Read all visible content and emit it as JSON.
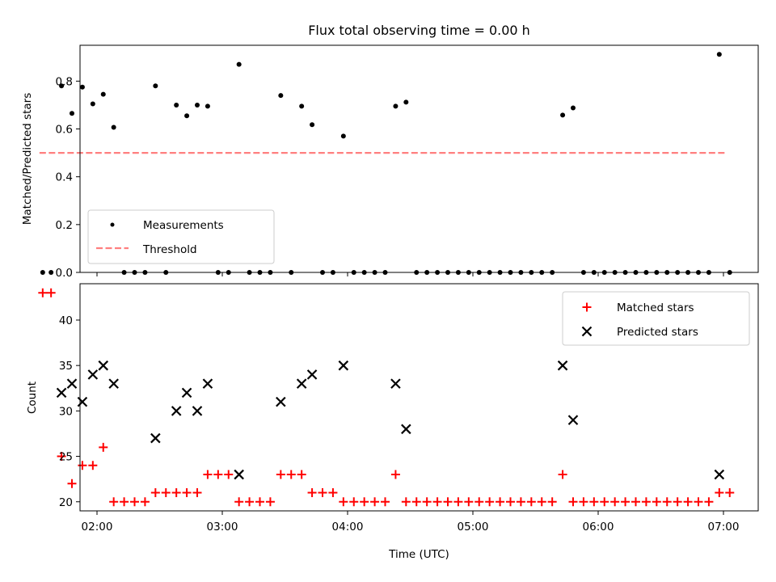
{
  "chart_data": [
    {
      "type": "scatter",
      "title": "Flux total observing time = 0.00 h",
      "xlabel": "",
      "ylabel": "Matched/Predicted stars",
      "ylim": [
        0,
        0.95
      ],
      "yticks": [
        "0.0",
        "0.2",
        "0.4",
        "0.6",
        "0.8"
      ],
      "grid": false,
      "legend_position": "lower-left",
      "series": [
        {
          "name": "Measurements",
          "color": "#000000",
          "marker": "dot",
          "x": [
            "01:34",
            "01:38",
            "01:43",
            "01:48",
            "01:53",
            "01:58",
            "02:03",
            "02:08",
            "02:13",
            "02:18",
            "02:23",
            "02:28",
            "02:33",
            "02:38",
            "02:43",
            "02:48",
            "02:53",
            "02:58",
            "03:03",
            "03:08",
            "03:13",
            "03:18",
            "03:23",
            "03:28",
            "03:33",
            "03:38",
            "03:43",
            "03:48",
            "03:53",
            "03:58",
            "04:03",
            "04:08",
            "04:13",
            "04:18",
            "04:23",
            "04:28",
            "04:33",
            "04:38",
            "04:43",
            "04:48",
            "04:53",
            "04:58",
            "05:03",
            "05:08",
            "05:13",
            "05:18",
            "05:23",
            "05:28",
            "05:33",
            "05:38",
            "05:43",
            "05:48",
            "05:53",
            "05:58",
            "06:03",
            "06:08",
            "06:13",
            "06:18",
            "06:23",
            "06:28",
            "06:33",
            "06:38",
            "06:43",
            "06:48",
            "06:53",
            "06:58",
            "07:03"
          ],
          "y": [
            0,
            0,
            0.78,
            0.665,
            0.775,
            0.705,
            0.745,
            0.607,
            0,
            0,
            0,
            0.78,
            0,
            0.7,
            0.655,
            0.7,
            0.695,
            0,
            0,
            0.87,
            0,
            0,
            0,
            0.74,
            0,
            0.695,
            0.618,
            0,
            0,
            0.57,
            0,
            0,
            0,
            0,
            0.695,
            0.712,
            0,
            0,
            0,
            0,
            0,
            0,
            0,
            0,
            0,
            0,
            0,
            0,
            0,
            0,
            0.658,
            0.688,
            0,
            0,
            0,
            0,
            0,
            0,
            0,
            0,
            0,
            0,
            0,
            0,
            0,
            0.912,
            0
          ]
        },
        {
          "name": "Threshold",
          "color": "#ff7f7f",
          "style": "dashed",
          "x": [
            "01:34",
            "07:03"
          ],
          "y": [
            0.5,
            0.5
          ]
        }
      ]
    },
    {
      "type": "scatter",
      "title": "",
      "xlabel": "Time (UTC)",
      "ylabel": "Count",
      "ylim": [
        19,
        44
      ],
      "yticks": [
        "20",
        "25",
        "30",
        "35",
        "40"
      ],
      "xticks": [
        "02:00",
        "03:00",
        "04:00",
        "05:00",
        "06:00",
        "07:00"
      ],
      "grid": false,
      "legend_position": "top-right",
      "series": [
        {
          "name": "Matched stars",
          "color": "#ff0000",
          "marker": "plus",
          "x": [
            "01:34",
            "01:38",
            "01:43",
            "01:48",
            "01:53",
            "01:58",
            "02:03",
            "02:08",
            "02:13",
            "02:18",
            "02:23",
            "02:28",
            "02:33",
            "02:38",
            "02:43",
            "02:48",
            "02:53",
            "02:58",
            "03:03",
            "03:08",
            "03:13",
            "03:18",
            "03:23",
            "03:28",
            "03:33",
            "03:38",
            "03:43",
            "03:48",
            "03:53",
            "03:58",
            "04:03",
            "04:08",
            "04:13",
            "04:18",
            "04:23",
            "04:28",
            "04:33",
            "04:38",
            "04:43",
            "04:48",
            "04:53",
            "04:58",
            "05:03",
            "05:08",
            "05:13",
            "05:18",
            "05:23",
            "05:28",
            "05:33",
            "05:38",
            "05:43",
            "05:48",
            "05:53",
            "05:58",
            "06:03",
            "06:08",
            "06:13",
            "06:18",
            "06:23",
            "06:28",
            "06:33",
            "06:38",
            "06:43",
            "06:48",
            "06:53",
            "06:58",
            "07:03"
          ],
          "y": [
            43,
            43,
            25,
            22,
            24,
            24,
            26,
            20,
            20,
            20,
            20,
            21,
            21,
            21,
            21,
            21,
            23,
            23,
            23,
            20,
            20,
            20,
            20,
            23,
            23,
            23,
            21,
            21,
            21,
            20,
            20,
            20,
            20,
            20,
            23,
            20,
            20,
            20,
            20,
            20,
            20,
            20,
            20,
            20,
            20,
            20,
            20,
            20,
            20,
            20,
            23,
            20,
            20,
            20,
            20,
            20,
            20,
            20,
            20,
            20,
            20,
            20,
            20,
            20,
            20,
            21,
            21
          ]
        },
        {
          "name": "Predicted stars",
          "color": "#000000",
          "marker": "x",
          "x": [
            "01:43",
            "01:48",
            "01:53",
            "01:58",
            "02:03",
            "02:08",
            "02:28",
            "02:38",
            "02:43",
            "02:48",
            "02:53",
            "03:08",
            "03:28",
            "03:38",
            "03:43",
            "03:58",
            "04:23",
            "04:28",
            "05:43",
            "05:48",
            "06:58"
          ],
          "y": [
            32,
            33,
            31,
            34,
            35,
            33,
            27,
            30,
            32,
            30,
            33,
            23,
            31,
            33,
            34,
            35,
            33,
            28,
            35,
            29,
            23
          ]
        }
      ]
    }
  ]
}
